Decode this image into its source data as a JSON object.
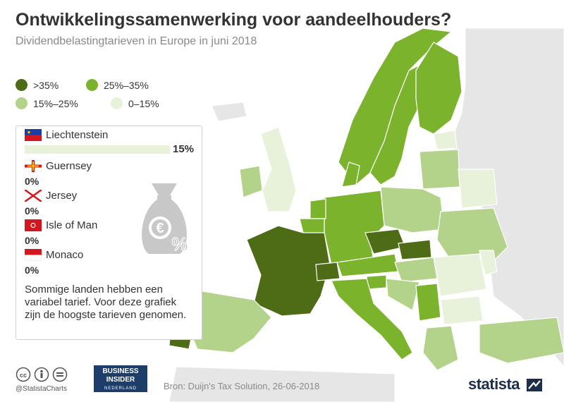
{
  "header": {
    "title": "Ontwikkelingssamenwerking voor aandeelhouders?",
    "subtitle": "Dividendbelastingtarieven in Europe in juni 2018"
  },
  "legend": [
    {
      "label": ">35%",
      "color": "#4e6b16"
    },
    {
      "label": "25%–35%",
      "color": "#7bb42c"
    },
    {
      "label": "15%–25%",
      "color": "#b4d38a"
    },
    {
      "label": "0–15%",
      "color": "#e8f2da"
    }
  ],
  "panel": {
    "rows": [
      {
        "name": "Liechtenstein",
        "value": "15%",
        "rate": 15,
        "flag": "liechtenstein-flag"
      },
      {
        "name": "Guernsey",
        "value": "0%",
        "rate": 0,
        "flag": "guernsey-flag"
      },
      {
        "name": "Jersey",
        "value": "0%",
        "rate": 0,
        "flag": "jersey-flag"
      },
      {
        "name": "Isle of Man",
        "value": "0%",
        "rate": 0,
        "flag": "isle-of-man-flag"
      },
      {
        "name": "Monaco",
        "value": "0%",
        "rate": 0,
        "flag": "monaco-flag"
      }
    ],
    "note": "Sommige landen hebben een variabel tarief. Voor deze grafiek zijn de hoogste tarieven genomen.",
    "icon": "money-bag-euro-percent-icon"
  },
  "footer": {
    "handle": "@StatistaCharts",
    "business_insider_line1": "BUSINESS",
    "business_insider_line2": "INSIDER",
    "business_insider_line3": "NEDERLAND",
    "source": "Bron: Duijn's Tax Solution, 26-06-2018",
    "brand": "statista"
  },
  "map": {
    "background_color": "#e6e6e6",
    "countries": [
      {
        "name": "France",
        "category": ">35%"
      },
      {
        "name": "Portugal",
        "category": ">35%"
      },
      {
        "name": "Czech Republic",
        "category": ">35%"
      },
      {
        "name": "Slovakia",
        "category": ">35%"
      },
      {
        "name": "Switzerland",
        "category": ">35%"
      },
      {
        "name": "Norway",
        "category": "25%–35%"
      },
      {
        "name": "Sweden",
        "category": "25%–35%"
      },
      {
        "name": "Finland",
        "category": "25%–35%"
      },
      {
        "name": "Denmark",
        "category": "25%–35%"
      },
      {
        "name": "Germany",
        "category": "25%–35%"
      },
      {
        "name": "Netherlands",
        "category": "25%–35%"
      },
      {
        "name": "Belgium",
        "category": "25%–35%"
      },
      {
        "name": "Austria",
        "category": "25%–35%"
      },
      {
        "name": "Italy",
        "category": "25%–35%"
      },
      {
        "name": "Slovenia",
        "category": "25%–35%"
      },
      {
        "name": "Serbia",
        "category": "25%–35%"
      },
      {
        "name": "Spain",
        "category": "15%–25%"
      },
      {
        "name": "Poland",
        "category": "15%–25%"
      },
      {
        "name": "Ireland",
        "category": "15%–25%"
      },
      {
        "name": "Baltics",
        "category": "15%–25%"
      },
      {
        "name": "Greece",
        "category": "15%–25%"
      },
      {
        "name": "Turkey",
        "category": "15%–25%"
      },
      {
        "name": "Ukraine",
        "category": "15%–25%"
      },
      {
        "name": "Hungary",
        "category": "15%–25%"
      },
      {
        "name": "Croatia",
        "category": "15%–25%"
      },
      {
        "name": "United Kingdom",
        "category": "0–15%"
      },
      {
        "name": "Estonia",
        "category": "0–15%"
      },
      {
        "name": "Belarus",
        "category": "0–15%"
      },
      {
        "name": "Romania",
        "category": "0–15%"
      },
      {
        "name": "Bulgaria",
        "category": "0–15%"
      },
      {
        "name": "Moldova",
        "category": "0–15%"
      }
    ]
  }
}
